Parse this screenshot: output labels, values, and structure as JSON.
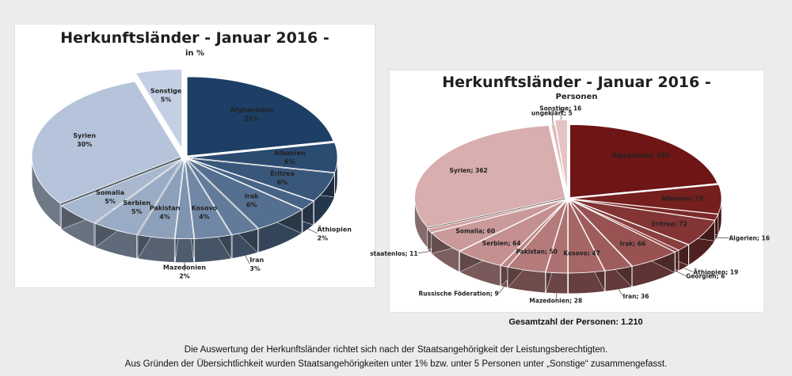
{
  "chart_data": [
    {
      "type": "pie",
      "title": "Herkunftsländer - Januar 2016 -",
      "subtitle": "in %",
      "base_color": "#2e5e8e",
      "start_color": "#1d3f66",
      "end_color": "#c3d0e4",
      "exploded": "Sonstige",
      "slices": [
        {
          "label": "Afghanistan",
          "value": 22,
          "text": "22%"
        },
        {
          "label": "Albanien",
          "value": 6,
          "text": "6%"
        },
        {
          "label": "Eritrea",
          "value": 6,
          "text": "6%"
        },
        {
          "label": "Äthiopien",
          "value": 2,
          "text": "2%"
        },
        {
          "label": "Irak",
          "value": 6,
          "text": "6%"
        },
        {
          "label": "Iran",
          "value": 3,
          "text": "3%"
        },
        {
          "label": "Kosovo",
          "value": 4,
          "text": "4%"
        },
        {
          "label": "Mazedonien",
          "value": 2,
          "text": "2%"
        },
        {
          "label": "Pakistan",
          "value": 4,
          "text": "4%"
        },
        {
          "label": "Serbien",
          "value": 5,
          "text": "5%"
        },
        {
          "label": "Somalia",
          "value": 5,
          "text": "5%"
        },
        {
          "label": "Syrien",
          "value": 30,
          "text": "30%"
        },
        {
          "label": "Sonstige",
          "value": 5,
          "text": "5%"
        }
      ]
    },
    {
      "type": "pie",
      "title": "Herkunftsländer - Januar 2016 -",
      "subtitle": "Personen",
      "base_color": "#8e2e2e",
      "start_color": "#6e1515",
      "end_color": "#e6c2c2",
      "exploded": "Sonstige",
      "slices": [
        {
          "label": "Afghanistan",
          "value": 265,
          "text": "Afghanistan; 265"
        },
        {
          "label": "Albanien",
          "value": 78,
          "text": "Albanien; 78"
        },
        {
          "label": "Algerien",
          "value": 16,
          "text": "Algerien; 16"
        },
        {
          "label": "Eritrea",
          "value": 72,
          "text": "Eritrea; 72"
        },
        {
          "label": "Äthiopien",
          "value": 19,
          "text": "Äthiopien; 19"
        },
        {
          "label": "Georgien",
          "value": 6,
          "text": "Georgien; 6"
        },
        {
          "label": "Irak",
          "value": 66,
          "text": "Irak; 66"
        },
        {
          "label": "Iran",
          "value": 36,
          "text": "Iran; 36"
        },
        {
          "label": "Kosovo",
          "value": 47,
          "text": "Kosovo; 47"
        },
        {
          "label": "Mazedonien",
          "value": 28,
          "text": "Mazedonien; 28"
        },
        {
          "label": "Pakistan",
          "value": 50,
          "text": "Pakistan; 50"
        },
        {
          "label": "Russische Föderation",
          "value": 9,
          "text": "Russische Föderation; 9"
        },
        {
          "label": "Serbien",
          "value": 64,
          "text": "Serbien; 64"
        },
        {
          "label": "Somalia",
          "value": 60,
          "text": "Somalia; 60"
        },
        {
          "label": "staatenlos",
          "value": 11,
          "text": "staatenlos; 11"
        },
        {
          "label": "Syrien",
          "value": 362,
          "text": "Syrien; 362"
        },
        {
          "label": "ungeklärt",
          "value": 5,
          "text": "ungeklärt; 5"
        },
        {
          "label": "Sonstige",
          "value": 16,
          "text": "Sonstige; 16"
        }
      ]
    }
  ],
  "total_text": "Gesamtzahl der Personen: 1.210",
  "footnote": {
    "line1": "Die Auswertung der Herkunftsländer richtet sich nach der Staatsangehörigkeit der Leistungsberechtigten.",
    "line2": "Aus Gründen der Übersichtlichkeit wurden Staatsangehörigkeiten unter 1% bzw. unter 5 Personen unter „Sonstige“ zusammengefasst."
  }
}
